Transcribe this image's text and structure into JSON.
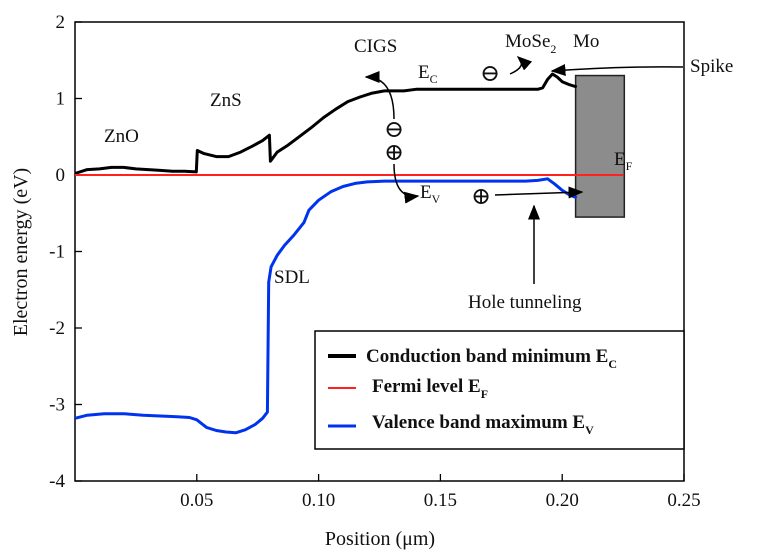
{
  "chart_data": {
    "type": "line",
    "xlabel": "Position (μm)",
    "ylabel": "Electron energy (eV)",
    "xlim": [
      0,
      0.25
    ],
    "ylim": [
      -4,
      2
    ],
    "x_ticks": [
      "0.05",
      "0.10",
      "0.15",
      "0.20",
      "0.25"
    ],
    "x_tick_values": [
      0.05,
      0.1,
      0.15,
      0.2,
      0.25
    ],
    "y_ticks": [
      "2",
      "1",
      "0",
      "-1",
      "-2",
      "-3",
      "-4"
    ],
    "y_tick_values": [
      2,
      1,
      0,
      -1,
      -2,
      -3,
      -4
    ],
    "series": [
      {
        "name": "Conduction band minimum",
        "name_sub": "C",
        "color": "#000000",
        "x": [
          0.0,
          0.005,
          0.01,
          0.015,
          0.02,
          0.025,
          0.03,
          0.035,
          0.04,
          0.045,
          0.0498,
          0.0502,
          0.053,
          0.058,
          0.063,
          0.068,
          0.073,
          0.077,
          0.0798,
          0.0802,
          0.083,
          0.087,
          0.092,
          0.097,
          0.102,
          0.107,
          0.112,
          0.117,
          0.122,
          0.127,
          0.135,
          0.14,
          0.15,
          0.16,
          0.17,
          0.18,
          0.19,
          0.192,
          0.194,
          0.196,
          0.198,
          0.2,
          0.203,
          0.206
        ],
        "y": [
          0.02,
          0.07,
          0.08,
          0.1,
          0.1,
          0.08,
          0.07,
          0.06,
          0.05,
          0.05,
          0.04,
          0.32,
          0.28,
          0.24,
          0.24,
          0.3,
          0.38,
          0.45,
          0.52,
          0.18,
          0.3,
          0.38,
          0.5,
          0.62,
          0.75,
          0.86,
          0.96,
          1.02,
          1.07,
          1.1,
          1.1,
          1.12,
          1.12,
          1.12,
          1.12,
          1.12,
          1.12,
          1.14,
          1.25,
          1.32,
          1.28,
          1.22,
          1.18,
          1.15
        ]
      },
      {
        "name": "Fermi level",
        "name_sub": "F",
        "color": "#ff2020",
        "x": [
          0.0,
          0.225
        ],
        "y": [
          0.0,
          0.0
        ]
      },
      {
        "name": "Valence band maximum",
        "name_sub": "V",
        "color": "#0033ee",
        "x": [
          0.0,
          0.005,
          0.012,
          0.02,
          0.028,
          0.035,
          0.042,
          0.047,
          0.05,
          0.054,
          0.058,
          0.062,
          0.066,
          0.07,
          0.074,
          0.077,
          0.079,
          0.0795,
          0.0805,
          0.083,
          0.086,
          0.09,
          0.094,
          0.096,
          0.1,
          0.105,
          0.11,
          0.115,
          0.12,
          0.127,
          0.135,
          0.145,
          0.155,
          0.165,
          0.175,
          0.185,
          0.19,
          0.194,
          0.197,
          0.2,
          0.203,
          0.206
        ],
        "y": [
          -3.18,
          -3.14,
          -3.12,
          -3.12,
          -3.14,
          -3.15,
          -3.16,
          -3.17,
          -3.2,
          -3.3,
          -3.34,
          -3.36,
          -3.37,
          -3.33,
          -3.26,
          -3.18,
          -3.1,
          -1.4,
          -1.2,
          -1.05,
          -0.92,
          -0.78,
          -0.62,
          -0.46,
          -0.33,
          -0.22,
          -0.15,
          -0.11,
          -0.09,
          -0.08,
          -0.08,
          -0.08,
          -0.08,
          -0.08,
          -0.08,
          -0.08,
          -0.07,
          -0.05,
          -0.12,
          -0.2,
          -0.26,
          -0.3
        ]
      }
    ],
    "labels": {
      "zno": "ZnO",
      "zns": "ZnS",
      "cigs": "CIGS",
      "mose2": "MoSe",
      "mose2_sub": "2",
      "mo": "Mo",
      "spike": "Spike",
      "sdl": "SDL",
      "hole_tunneling": "Hole tunneling",
      "ec": "E",
      "ec_sub": "C",
      "ev": "E",
      "ev_sub": "V",
      "ef": "E",
      "ef_sub": "F",
      "electron_symbol": "⊖",
      "hole_symbol": "⊕"
    },
    "legend": {
      "position": "bottom-right",
      "entries": [
        {
          "text": "Conduction band minimum E",
          "sub": "C",
          "color": "#000000"
        },
        {
          "text": "Fermi level E",
          "sub": "F",
          "color": "#ff2020"
        },
        {
          "text": "Valence band maximum E",
          "sub": "V",
          "color": "#0033ee"
        }
      ]
    },
    "mo_contact": {
      "x_start": 0.2055,
      "x_end": 0.2255,
      "y_top": 1.3,
      "y_bottom": -0.55,
      "color": "#8c8c8c"
    },
    "grid": false
  }
}
